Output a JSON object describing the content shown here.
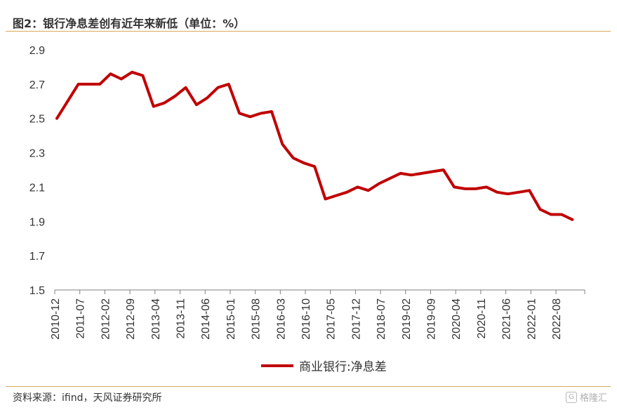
{
  "header": {
    "title": "图2：银行净息差创有近年来新低（单位：%）"
  },
  "footer": {
    "source": "资料来源：ifind，天风证券研究所",
    "watermark_text": "格隆汇",
    "watermark_mark": "G"
  },
  "chart_data": {
    "type": "line",
    "ylim": [
      1.5,
      2.9
    ],
    "yticks": [
      "1.5",
      "1.7",
      "1.9",
      "2.1",
      "2.3",
      "2.5",
      "2.7",
      "2.9"
    ],
    "x_tick_labels": [
      "2010-12",
      "2011-07",
      "2012-02",
      "2012-09",
      "2013-04",
      "2013-11",
      "2014-06",
      "2015-01",
      "2015-08",
      "2016-03",
      "2016-10",
      "2017-05",
      "2017-12",
      "2018-07",
      "2019-02",
      "2019-09",
      "2020-04",
      "2020-11",
      "2021-06",
      "2022-01",
      "2022-08"
    ],
    "legend_position": "bottom",
    "grid": false,
    "series": [
      {
        "name": "商业银行:净息差",
        "color": "#c00000",
        "x": [
          "2010-12",
          "2011-03",
          "2011-06",
          "2011-09",
          "2011-12",
          "2012-03",
          "2012-06",
          "2012-09",
          "2012-12",
          "2013-03",
          "2013-06",
          "2013-09",
          "2013-12",
          "2014-03",
          "2014-06",
          "2014-09",
          "2014-12",
          "2015-03",
          "2015-06",
          "2015-09",
          "2015-12",
          "2016-03",
          "2016-06",
          "2016-09",
          "2016-12",
          "2017-03",
          "2017-06",
          "2017-09",
          "2017-12",
          "2018-03",
          "2018-06",
          "2018-09",
          "2018-12",
          "2019-03",
          "2019-06",
          "2019-09",
          "2019-12",
          "2020-03",
          "2020-06",
          "2020-09",
          "2020-12",
          "2021-03",
          "2021-06",
          "2021-09",
          "2021-12",
          "2022-03",
          "2022-06",
          "2022-09",
          "2022-12"
        ],
        "values": [
          2.5,
          2.6,
          2.7,
          2.7,
          2.7,
          2.76,
          2.73,
          2.77,
          2.75,
          2.57,
          2.59,
          2.63,
          2.68,
          2.58,
          2.62,
          2.68,
          2.7,
          2.53,
          2.51,
          2.53,
          2.54,
          2.35,
          2.27,
          2.24,
          2.22,
          2.03,
          2.05,
          2.07,
          2.1,
          2.08,
          2.12,
          2.15,
          2.18,
          2.17,
          2.18,
          2.19,
          2.2,
          2.1,
          2.09,
          2.09,
          2.1,
          2.07,
          2.06,
          2.07,
          2.08,
          1.97,
          1.94,
          1.94,
          1.91
        ]
      }
    ]
  }
}
